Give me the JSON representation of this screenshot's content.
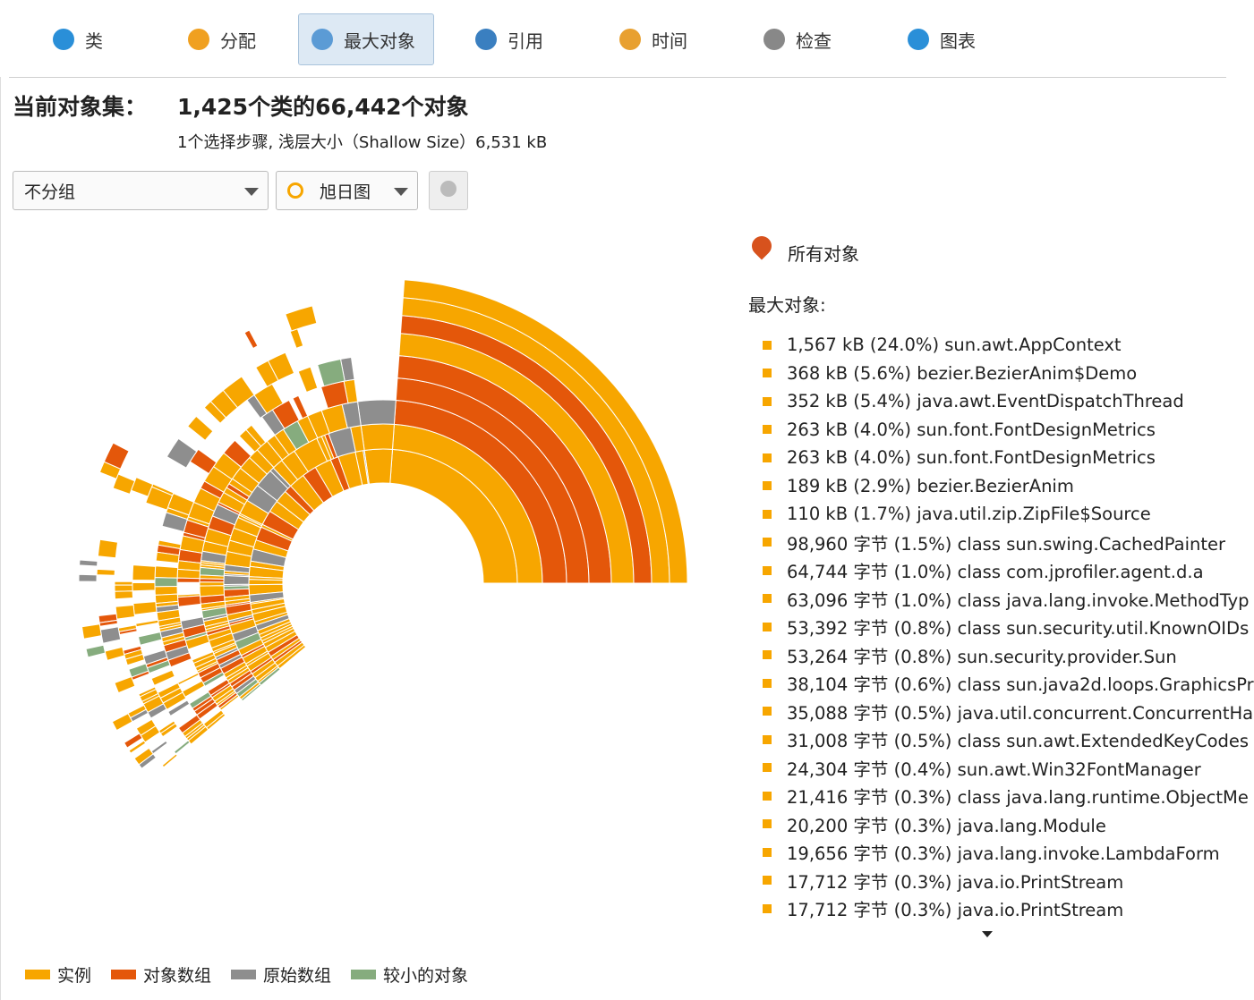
{
  "tabs": [
    "类",
    "分配",
    "最大对象",
    "引用",
    "时间",
    "检查",
    "图表"
  ],
  "header": {
    "label": "当前对象集：",
    "summary": "1,425个类的66,442个对象",
    "detail": "1个选择步骤, 浅层大小（Shallow Size）6,531 kB"
  },
  "controls": {
    "grouping": "不分组",
    "view": "旭日图"
  },
  "panel": {
    "root": "所有对象",
    "heading": "最大对象:",
    "items": [
      "1,567 kB (24.0%) sun.awt.AppContext",
      "368 kB (5.6%) bezier.BezierAnim$Demo",
      "352 kB (5.4%) java.awt.EventDispatchThread",
      "263 kB (4.0%) sun.font.FontDesignMetrics",
      "263 kB (4.0%) sun.font.FontDesignMetrics",
      "189 kB (2.9%) bezier.BezierAnim",
      "110 kB (1.7%) java.util.zip.ZipFile$Source",
      "98,960 字节 (1.5%) class sun.swing.CachedPainter",
      "64,744 字节 (1.0%) class com.jprofiler.agent.d.a",
      "63,096 字节 (1.0%) class java.lang.invoke.MethodTyp",
      "53,392 字节 (0.8%) class sun.security.util.KnownOIDs",
      "53,264 字节 (0.8%) sun.security.provider.Sun",
      "38,104 字节 (0.6%) class sun.java2d.loops.GraphicsPr",
      "35,088 字节 (0.5%) java.util.concurrent.ConcurrentHa",
      "31,008 字节 (0.5%) class sun.awt.ExtendedKeyCodes",
      "24,304 字节 (0.4%) sun.awt.Win32FontManager",
      "21,416 字节 (0.3%) class java.lang.runtime.ObjectMe",
      "20,200 字节 (0.3%) java.lang.Module",
      "19,656 字节 (0.3%) java.lang.invoke.LambdaForm",
      "17,712 字节 (0.3%) java.io.PrintStream",
      "17,712 字节 (0.3%) java.io.PrintStream"
    ]
  },
  "legend": [
    {
      "label": "实例",
      "color": "#f7a600"
    },
    {
      "label": "对象数组",
      "color": "#e4570a"
    },
    {
      "label": "原始数组",
      "color": "#8e8e8e"
    },
    {
      "label": "较小的对象",
      "color": "#86ac7e"
    }
  ]
}
